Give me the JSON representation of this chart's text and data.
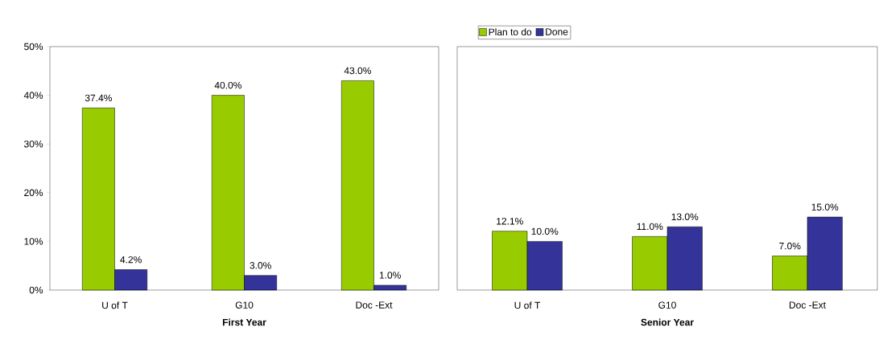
{
  "chart_data": [
    {
      "type": "bar",
      "xlabel": "First Year",
      "categories": [
        "U of T",
        "G10",
        "Doc -Ext"
      ],
      "ylim": [
        0,
        50
      ],
      "yticks": [
        {
          "value": 0,
          "label": "0%"
        },
        {
          "value": 10,
          "label": "10%"
        },
        {
          "value": 20,
          "label": "20%"
        },
        {
          "value": 30,
          "label": "30%"
        },
        {
          "value": 40,
          "label": "40%"
        },
        {
          "value": 50,
          "label": "50%"
        }
      ],
      "legend": false,
      "series": [
        {
          "color": "#99cc00",
          "values": [
            37.4,
            40.0,
            43.0
          ],
          "value_labels": [
            "37.4%",
            "40.0%",
            "43.0%"
          ]
        },
        {
          "color": "#333399",
          "values": [
            4.2,
            3.0,
            1.0
          ],
          "value_labels": [
            "4.2%",
            "3.0%",
            "1.0%"
          ]
        }
      ]
    },
    {
      "type": "bar",
      "xlabel": "Senior Year",
      "categories": [
        "U of T",
        "G10",
        "Doc -Ext"
      ],
      "ylim": [
        0,
        50
      ],
      "tick_labels": "x",
      "legend": "top",
      "series": [
        {
          "name": "Plan to do",
          "color": "#99cc00",
          "values": [
            12.1,
            11.0,
            7.0
          ],
          "value_labels": [
            "12.1%",
            "11.0%",
            "7.0%"
          ]
        },
        {
          "name": "Done",
          "color": "#333399",
          "values": [
            10.0,
            13.0,
            15.0
          ],
          "value_labels": [
            "10.0%",
            "13.0%",
            "15.0%"
          ]
        }
      ]
    }
  ]
}
